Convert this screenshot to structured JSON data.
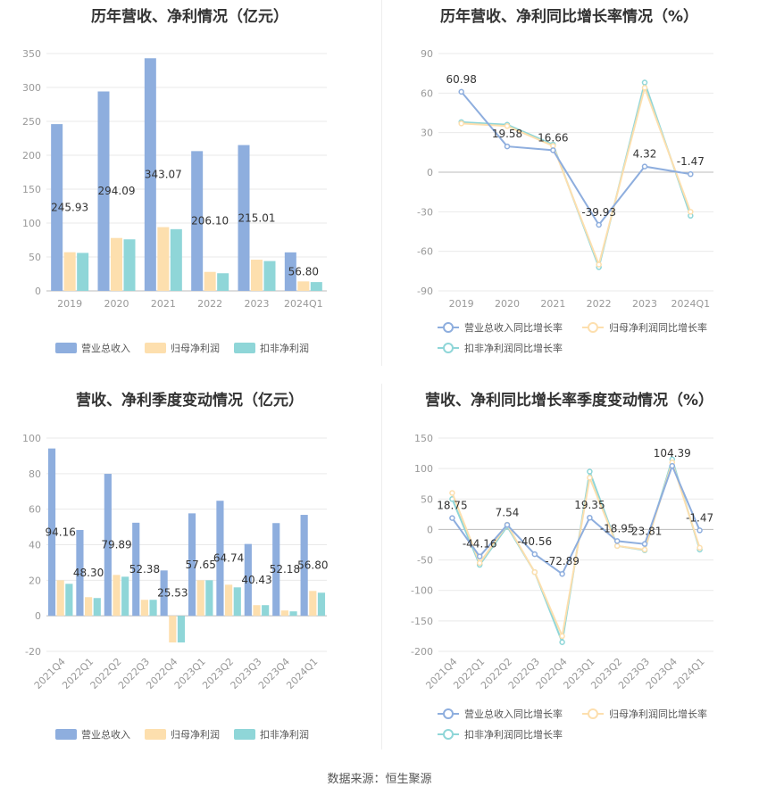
{
  "source": "数据来源：恒生聚源",
  "colors": {
    "revenue": "#8eaede",
    "net_profit": "#fddfae",
    "deducted_profit": "#8fd6d8",
    "grid": "#e9e9e9",
    "axis": "#bbbbbb"
  },
  "legend_bar": [
    "营业总收入",
    "归母净利润",
    "扣非净利润"
  ],
  "legend_line": [
    "营业总收入同比增长率",
    "归母净利润同比增长率",
    "扣非净利润同比增长率"
  ],
  "chart_data": [
    {
      "type": "bar",
      "title": "历年营收、净利情况（亿元）",
      "categories": [
        "2019",
        "2020",
        "2021",
        "2022",
        "2023",
        "2024Q1"
      ],
      "ylim": [
        0,
        350
      ],
      "yticks": [
        0,
        50,
        100,
        150,
        200,
        250,
        300,
        350
      ],
      "series": [
        {
          "name": "营业总收入",
          "values": [
            245.93,
            294.09,
            343.07,
            206.1,
            215.01,
            56.8
          ]
        },
        {
          "name": "归母净利润",
          "values": [
            57,
            78,
            94,
            28,
            46,
            14
          ]
        },
        {
          "name": "扣非净利润",
          "values": [
            56,
            76,
            91,
            26,
            44,
            13
          ]
        }
      ],
      "labels": [
        "245.93",
        "294.09",
        "343.07",
        "206.10",
        "215.01",
        "56.80"
      ]
    },
    {
      "type": "line",
      "title": "历年营收、净利同比增长率情况（%）",
      "categories": [
        "2019",
        "2020",
        "2021",
        "2022",
        "2023",
        "2024Q1"
      ],
      "ylim": [
        -90,
        90
      ],
      "yticks": [
        -90,
        -60,
        -30,
        0,
        30,
        60,
        90
      ],
      "series": [
        {
          "name": "营业总收入同比增长率",
          "values": [
            60.98,
            19.58,
            16.66,
            -39.93,
            4.32,
            -1.47
          ]
        },
        {
          "name": "归母净利润同比增长率",
          "values": [
            37,
            35,
            20,
            -70,
            64,
            -30
          ]
        },
        {
          "name": "扣非净利润同比增长率",
          "values": [
            38,
            36,
            21,
            -72,
            68,
            -33
          ]
        }
      ],
      "labels": [
        "60.98",
        "19.58",
        "16.66",
        "-39.93",
        "4.32",
        "-1.47"
      ]
    },
    {
      "type": "bar",
      "title": "营收、净利季度变动情况（亿元）",
      "categories": [
        "2021Q4",
        "2022Q1",
        "2022Q2",
        "2022Q3",
        "2022Q4",
        "2023Q1",
        "2023Q2",
        "2023Q3",
        "2023Q4",
        "2024Q1"
      ],
      "ylim": [
        -20,
        100
      ],
      "yticks": [
        -20,
        0,
        20,
        40,
        60,
        80,
        100
      ],
      "series": [
        {
          "name": "营业总收入",
          "values": [
            94.16,
            48.3,
            79.89,
            52.38,
            25.53,
            57.65,
            64.74,
            40.43,
            52.18,
            56.8
          ]
        },
        {
          "name": "归母净利润",
          "values": [
            20,
            10.5,
            23,
            9,
            -15,
            20,
            17.5,
            6,
            3,
            14
          ]
        },
        {
          "name": "扣非净利润",
          "values": [
            18,
            10,
            22,
            9,
            -15,
            20,
            16,
            6,
            2.5,
            13
          ]
        }
      ],
      "labels": [
        "94.16",
        "48.30",
        "79.89",
        "52.38",
        "25.53",
        "57.65",
        "64.74",
        "40.43",
        "52.18",
        "56.80"
      ]
    },
    {
      "type": "line",
      "title": "营收、净利同比增长率季度变动情况（%）",
      "categories": [
        "2021Q4",
        "2022Q1",
        "2022Q2",
        "2022Q3",
        "2022Q4",
        "2023Q1",
        "2023Q2",
        "2023Q3",
        "2023Q4",
        "2024Q1"
      ],
      "ylim": [
        -200,
        150
      ],
      "yticks": [
        -200,
        -150,
        -100,
        -50,
        0,
        50,
        100,
        150
      ],
      "series": [
        {
          "name": "营业总收入同比增长率",
          "values": [
            18.75,
            -44.16,
            7.54,
            -40.56,
            -72.89,
            19.35,
            -18.95,
            -23.81,
            104.39,
            -1.47
          ]
        },
        {
          "name": "归母净利润同比增长率",
          "values": [
            60,
            -55,
            8,
            -70,
            -175,
            85,
            -27,
            -33,
            110,
            -30
          ]
        },
        {
          "name": "扣非净利润同比增长率",
          "values": [
            50,
            -58,
            5,
            -70,
            -185,
            95,
            -27,
            -34,
            115,
            -33
          ]
        }
      ],
      "labels": [
        "18.75",
        "-44.16",
        "7.54",
        "-40.56",
        "-72.89",
        "19.35",
        "-18.95",
        "-23.81",
        "104.39",
        "-1.47"
      ]
    }
  ]
}
